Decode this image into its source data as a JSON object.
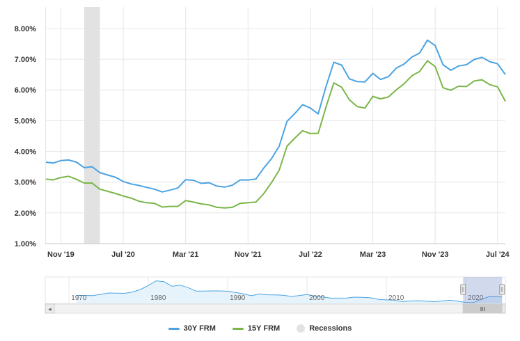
{
  "chart_data": {
    "type": "line",
    "y_ticks": [
      "8.00%",
      "7.00%",
      "6.00%",
      "5.00%",
      "4.00%",
      "3.00%",
      "2.00%",
      "1.00%"
    ],
    "ylim": [
      1.0,
      8.7
    ],
    "x_ticks": [
      "Nov '19",
      "Jul '20",
      "Mar '21",
      "Nov '21",
      "Jul '22",
      "Mar '23",
      "Nov '23",
      "Jul '24"
    ],
    "grid": true,
    "legend_placement": "bottom-center",
    "series": [
      {
        "name": "30Y FRM",
        "color": "#4ba3e2",
        "points": [
          [
            "2019-09",
            3.65
          ],
          [
            "2019-10",
            3.62
          ],
          [
            "2019-11",
            3.7
          ],
          [
            "2019-12",
            3.72
          ],
          [
            "2020-01",
            3.65
          ],
          [
            "2020-02",
            3.47
          ],
          [
            "2020-03",
            3.5
          ],
          [
            "2020-04",
            3.31
          ],
          [
            "2020-05",
            3.23
          ],
          [
            "2020-06",
            3.16
          ],
          [
            "2020-07",
            3.02
          ],
          [
            "2020-08",
            2.94
          ],
          [
            "2020-09",
            2.89
          ],
          [
            "2020-10",
            2.83
          ],
          [
            "2020-11",
            2.77
          ],
          [
            "2020-12",
            2.68
          ],
          [
            "2021-01",
            2.74
          ],
          [
            "2021-02",
            2.81
          ],
          [
            "2021-03",
            3.08
          ],
          [
            "2021-04",
            3.06
          ],
          [
            "2021-05",
            2.96
          ],
          [
            "2021-06",
            2.98
          ],
          [
            "2021-07",
            2.87
          ],
          [
            "2021-08",
            2.84
          ],
          [
            "2021-09",
            2.9
          ],
          [
            "2021-10",
            3.07
          ],
          [
            "2021-11",
            3.07
          ],
          [
            "2021-12",
            3.1
          ],
          [
            "2022-01",
            3.45
          ],
          [
            "2022-02",
            3.76
          ],
          [
            "2022-03",
            4.17
          ],
          [
            "2022-04",
            4.98
          ],
          [
            "2022-05",
            5.23
          ],
          [
            "2022-06",
            5.52
          ],
          [
            "2022-07",
            5.41
          ],
          [
            "2022-08",
            5.22
          ],
          [
            "2022-09",
            6.11
          ],
          [
            "2022-10",
            6.9
          ],
          [
            "2022-11",
            6.81
          ],
          [
            "2022-12",
            6.36
          ],
          [
            "2023-01",
            6.27
          ],
          [
            "2023-02",
            6.26
          ],
          [
            "2023-03",
            6.54
          ],
          [
            "2023-04",
            6.34
          ],
          [
            "2023-05",
            6.43
          ],
          [
            "2023-06",
            6.71
          ],
          [
            "2023-07",
            6.84
          ],
          [
            "2023-08",
            7.07
          ],
          [
            "2023-09",
            7.2
          ],
          [
            "2023-10",
            7.62
          ],
          [
            "2023-11",
            7.44
          ],
          [
            "2023-12",
            6.82
          ],
          [
            "2024-01",
            6.64
          ],
          [
            "2024-02",
            6.78
          ],
          [
            "2024-03",
            6.82
          ],
          [
            "2024-04",
            6.99
          ],
          [
            "2024-05",
            7.06
          ],
          [
            "2024-06",
            6.92
          ],
          [
            "2024-07",
            6.85
          ],
          [
            "2024-08",
            6.5
          ]
        ]
      },
      {
        "name": "15Y FRM",
        "color": "#7ab648",
        "points": [
          [
            "2019-09",
            3.1
          ],
          [
            "2019-10",
            3.07
          ],
          [
            "2019-11",
            3.15
          ],
          [
            "2019-12",
            3.19
          ],
          [
            "2020-01",
            3.09
          ],
          [
            "2020-02",
            2.97
          ],
          [
            "2020-03",
            2.97
          ],
          [
            "2020-04",
            2.77
          ],
          [
            "2020-05",
            2.7
          ],
          [
            "2020-06",
            2.63
          ],
          [
            "2020-07",
            2.55
          ],
          [
            "2020-08",
            2.48
          ],
          [
            "2020-09",
            2.38
          ],
          [
            "2020-10",
            2.33
          ],
          [
            "2020-11",
            2.31
          ],
          [
            "2020-12",
            2.19
          ],
          [
            "2021-01",
            2.21
          ],
          [
            "2021-02",
            2.21
          ],
          [
            "2021-03",
            2.4
          ],
          [
            "2021-04",
            2.35
          ],
          [
            "2021-05",
            2.29
          ],
          [
            "2021-06",
            2.26
          ],
          [
            "2021-07",
            2.18
          ],
          [
            "2021-08",
            2.16
          ],
          [
            "2021-09",
            2.18
          ],
          [
            "2021-10",
            2.31
          ],
          [
            "2021-11",
            2.33
          ],
          [
            "2021-12",
            2.35
          ],
          [
            "2022-01",
            2.62
          ],
          [
            "2022-02",
            2.98
          ],
          [
            "2022-03",
            3.39
          ],
          [
            "2022-04",
            4.17
          ],
          [
            "2022-05",
            4.43
          ],
          [
            "2022-06",
            4.67
          ],
          [
            "2022-07",
            4.58
          ],
          [
            "2022-08",
            4.59
          ],
          [
            "2022-09",
            5.44
          ],
          [
            "2022-10",
            6.23
          ],
          [
            "2022-11",
            6.09
          ],
          [
            "2022-12",
            5.68
          ],
          [
            "2023-01",
            5.46
          ],
          [
            "2023-02",
            5.41
          ],
          [
            "2023-03",
            5.79
          ],
          [
            "2023-04",
            5.71
          ],
          [
            "2023-05",
            5.77
          ],
          [
            "2023-06",
            6.0
          ],
          [
            "2023-07",
            6.2
          ],
          [
            "2023-08",
            6.46
          ],
          [
            "2023-09",
            6.6
          ],
          [
            "2023-10",
            6.95
          ],
          [
            "2023-11",
            6.76
          ],
          [
            "2023-12",
            6.07
          ],
          [
            "2024-01",
            5.99
          ],
          [
            "2024-02",
            6.12
          ],
          [
            "2024-03",
            6.11
          ],
          [
            "2024-04",
            6.29
          ],
          [
            "2024-05",
            6.33
          ],
          [
            "2024-06",
            6.17
          ],
          [
            "2024-07",
            6.1
          ],
          [
            "2024-08",
            5.63
          ]
        ]
      }
    ],
    "recession": {
      "name": "Recessions",
      "start": "2020-02",
      "end": "2020-04",
      "color": "#e2e2e2"
    },
    "navigator": {
      "ticks": [
        "1970",
        "1980",
        "1990",
        "2000",
        "2010",
        "2020"
      ],
      "xlim": [
        1967,
        2025
      ],
      "ylim": [
        2.5,
        19
      ],
      "selected_range": [
        "2019-09",
        "2024-08"
      ],
      "series_points": [
        [
          1971,
          7.5
        ],
        [
          1973,
          7.4
        ],
        [
          1975,
          9.0
        ],
        [
          1977,
          8.8
        ],
        [
          1978,
          9.6
        ],
        [
          1979,
          11.2
        ],
        [
          1980,
          13.7
        ],
        [
          1981,
          16.6
        ],
        [
          1982,
          16.0
        ],
        [
          1983,
          13.2
        ],
        [
          1984,
          13.9
        ],
        [
          1985,
          12.4
        ],
        [
          1986,
          10.2
        ],
        [
          1987,
          10.2
        ],
        [
          1988,
          10.3
        ],
        [
          1989,
          10.3
        ],
        [
          1990,
          10.1
        ],
        [
          1991,
          9.3
        ],
        [
          1992,
          8.4
        ],
        [
          1993,
          7.3
        ],
        [
          1994,
          8.4
        ],
        [
          1995,
          7.9
        ],
        [
          1996,
          7.8
        ],
        [
          1997,
          7.6
        ],
        [
          1998,
          6.9
        ],
        [
          1999,
          7.4
        ],
        [
          2000,
          8.1
        ],
        [
          2001,
          7.0
        ],
        [
          2002,
          6.5
        ],
        [
          2003,
          5.8
        ],
        [
          2004,
          5.8
        ],
        [
          2005,
          5.9
        ],
        [
          2006,
          6.4
        ],
        [
          2007,
          6.3
        ],
        [
          2008,
          6.0
        ],
        [
          2009,
          5.0
        ],
        [
          2010,
          4.7
        ],
        [
          2011,
          4.5
        ],
        [
          2012,
          3.7
        ],
        [
          2013,
          4.0
        ],
        [
          2014,
          4.2
        ],
        [
          2015,
          3.9
        ],
        [
          2016,
          3.6
        ],
        [
          2017,
          4.0
        ],
        [
          2018,
          4.5
        ],
        [
          2019,
          3.9
        ],
        [
          2020,
          3.1
        ],
        [
          2021,
          3.0
        ],
        [
          2022,
          5.3
        ],
        [
          2023,
          6.8
        ],
        [
          2024,
          6.7
        ],
        [
          2024.6,
          6.5
        ]
      ]
    }
  },
  "legend": {
    "items": [
      {
        "label": "30Y FRM",
        "color": "#4ba3e2"
      },
      {
        "label": "15Y FRM",
        "color": "#7ab648"
      },
      {
        "label": "Recessions",
        "color": "#e2e2e2"
      }
    ]
  },
  "scrollbar": {
    "left_arrow": "◂",
    "right_arrow": "▸",
    "grip": "III"
  }
}
